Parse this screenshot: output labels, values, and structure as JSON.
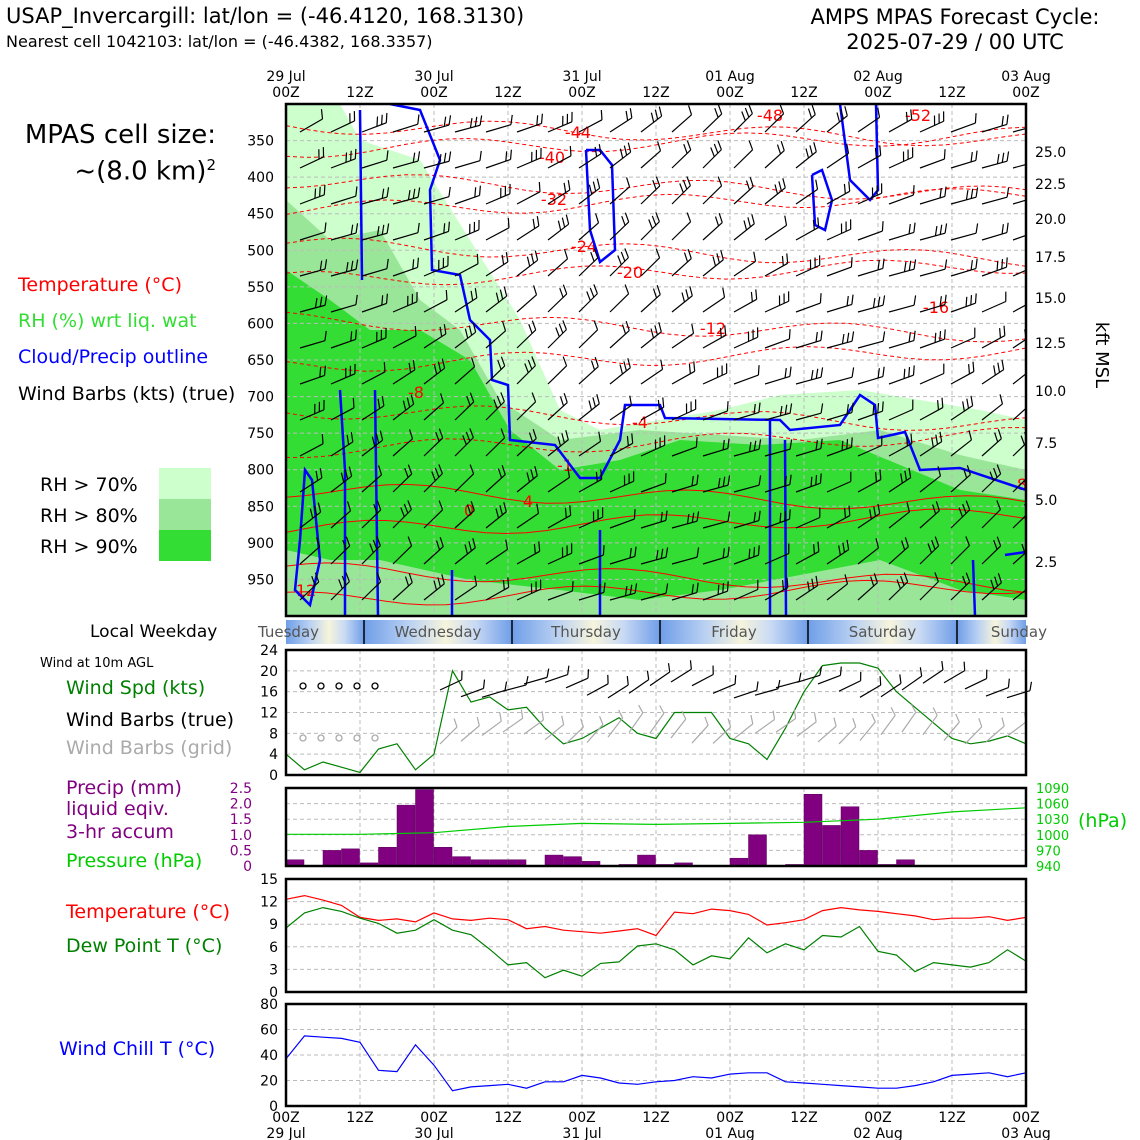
{
  "header": {
    "station": "USAP_Invercargill: lat/lon = (-46.4120, 168.3130)",
    "nearest": "Nearest cell 1042103: lat/lon = (-46.4382, 168.3357)",
    "cycle_title": "AMPS MPAS Forecast Cycle:",
    "cycle_date": "2025-07-29 / 00 UTC"
  },
  "cell_size": {
    "line1": "MPAS cell size:",
    "line2": "~(8.0 km)",
    "sup": "2"
  },
  "legend": {
    "temperature": "Temperature (°C)",
    "rh": "RH (%) wrt liq. wat",
    "cloud": "Cloud/Precip outline",
    "wind": "Wind Barbs (kts) (true)",
    "rh70": "RH > 70%",
    "rh80": "RH > 80%",
    "rh90": "RH > 90%"
  },
  "colors": {
    "rh70": "#ccffcc",
    "rh80": "#99e699",
    "rh90": "#33dd33",
    "temperature": "#ff0000",
    "cloud": "#0000ff",
    "wind_speed": "#008000",
    "precip": "#800080",
    "pressure": "#00cc00",
    "dewpoint": "#008000",
    "windchill": "#0000ff",
    "grid_barbs": "#aaaaaa"
  },
  "time_axis": {
    "top_dates": [
      "29 Jul",
      "30 Jul",
      "31 Jul",
      "01 Aug",
      "02 Aug",
      "03 Aug"
    ],
    "tick_labels": [
      "00Z",
      "12Z",
      "00Z",
      "12Z",
      "00Z",
      "12Z",
      "00Z",
      "12Z",
      "00Z",
      "12Z",
      "00Z"
    ],
    "bottom_dates": [
      "29 Jul",
      "30 Jul",
      "31 Jul",
      "01 Aug",
      "02 Aug",
      "03 Aug"
    ]
  },
  "weekdays": {
    "label": "Local Weekday",
    "days": [
      "Tuesday",
      "Wednesday",
      "Thursday",
      "Friday",
      "Saturday",
      "Sunday"
    ]
  },
  "chart_data": [
    {
      "type": "heatmap",
      "yticks_hpa": [
        350,
        400,
        450,
        500,
        550,
        600,
        650,
        700,
        750,
        800,
        850,
        900,
        950
      ],
      "ylim_hpa": [
        1000,
        300
      ],
      "right_axis_label": "kft MSL",
      "right_ticks_kft": [
        25.0,
        22.5,
        20.0,
        17.5,
        15.0,
        12.5,
        10.0,
        7.5,
        5.0,
        2.5
      ],
      "temperature_contour_labels": [
        "-48",
        "-52",
        "-44",
        "-40",
        "-32",
        "-24",
        "-20",
        "-16",
        "-12",
        "-8",
        "-4",
        "-1",
        "0",
        "4",
        "8",
        "12"
      ],
      "x_hours_range": [
        0,
        120
      ]
    },
    {
      "type": "line",
      "title_lines": [
        "Wind at 10m AGL"
      ],
      "series": [
        {
          "name": "Wind Spd (kts)",
          "x_hours": [
            0,
            3,
            6,
            9,
            12,
            15,
            18,
            21,
            24,
            27,
            30,
            33,
            36,
            39,
            42,
            45,
            48,
            51,
            54,
            57,
            60,
            63,
            66,
            69,
            72,
            75,
            78,
            81,
            84,
            87,
            90,
            93,
            96,
            99,
            102,
            105,
            108,
            111,
            114,
            117,
            120
          ],
          "values": [
            4,
            1,
            2.5,
            1.5,
            0.5,
            5,
            6,
            1,
            4,
            20,
            14,
            15,
            12.5,
            13,
            9,
            6,
            7,
            9,
            11,
            8,
            7,
            12,
            12,
            12,
            7,
            6,
            3,
            9,
            16,
            21,
            21.5,
            21.5,
            20.5,
            16,
            13,
            10,
            7,
            6,
            6.5,
            7.5,
            6
          ]
        }
      ],
      "extra_labels": [
        "Wind Barbs (true)",
        "Wind Barbs (grid)"
      ],
      "ylim": [
        0,
        24
      ],
      "yticks": [
        0,
        4,
        8,
        12,
        16,
        20,
        24
      ]
    },
    {
      "type": "bar",
      "series": [
        {
          "name": "Precip (mm) liquid eqiv. 3-hr accum",
          "x_hours": [
            0,
            3,
            6,
            9,
            12,
            15,
            18,
            21,
            24,
            27,
            30,
            33,
            36,
            39,
            42,
            45,
            48,
            51,
            54,
            57,
            60,
            63,
            66,
            69,
            72,
            75,
            78,
            81,
            84,
            87,
            90,
            93,
            96,
            99,
            102,
            105,
            108,
            111,
            114,
            117
          ],
          "values": [
            0.2,
            0.0,
            0.5,
            0.55,
            0.1,
            0.6,
            1.95,
            2.45,
            0.6,
            0.3,
            0.2,
            0.2,
            0.2,
            0.0,
            0.35,
            0.3,
            0.15,
            0.0,
            0.05,
            0.35,
            0.05,
            0.1,
            0.0,
            0.0,
            0.25,
            1.0,
            0.0,
            0.05,
            2.3,
            1.3,
            1.9,
            0.5,
            0.05,
            0.2,
            0.0,
            0.0,
            0.0,
            0.0,
            0.0,
            0.0
          ]
        },
        {
          "name": "Pressure (hPa)",
          "x_hours": [
            0,
            12,
            24,
            36,
            48,
            60,
            72,
            84,
            96,
            108,
            120
          ],
          "values": [
            1001,
            1001,
            1004,
            1016,
            1022,
            1020,
            1022,
            1024,
            1030,
            1044,
            1052
          ]
        }
      ],
      "ylim": [
        0,
        2.5
      ],
      "yticks": [
        0,
        0.5,
        1.0,
        1.5,
        2.0,
        2.5
      ],
      "y2lim": [
        940,
        1090
      ],
      "y2ticks": [
        940,
        970,
        1000,
        1030,
        1060,
        1090
      ],
      "y2label": "(hPa)"
    },
    {
      "type": "line",
      "series": [
        {
          "name": "Temperature (°C)",
          "x_hours": [
            0,
            3,
            6,
            9,
            12,
            15,
            18,
            21,
            24,
            27,
            30,
            33,
            36,
            39,
            42,
            45,
            48,
            51,
            54,
            57,
            60,
            63,
            66,
            69,
            72,
            75,
            78,
            81,
            84,
            87,
            90,
            93,
            96,
            99,
            102,
            105,
            108,
            111,
            114,
            117,
            120
          ],
          "values": [
            12.3,
            12.8,
            12.2,
            11.5,
            9.9,
            9.5,
            9.7,
            9.3,
            10.5,
            9.7,
            9.5,
            9.8,
            9.6,
            8.4,
            8.7,
            8.2,
            8.0,
            7.8,
            8.1,
            8.4,
            7.5,
            10.6,
            10.4,
            11.0,
            10.8,
            10.3,
            8.9,
            9.2,
            9.6,
            10.8,
            11.2,
            10.9,
            10.7,
            10.4,
            10.1,
            9.6,
            9.8,
            9.8,
            10.0,
            9.5,
            9.9
          ]
        },
        {
          "name": "Dew Point T (°C)",
          "x_hours": [
            0,
            3,
            6,
            9,
            12,
            15,
            18,
            21,
            24,
            27,
            30,
            33,
            36,
            39,
            42,
            45,
            48,
            51,
            54,
            57,
            60,
            63,
            66,
            69,
            72,
            75,
            78,
            81,
            84,
            87,
            90,
            93,
            96,
            99,
            102,
            105,
            108,
            111,
            114,
            117,
            120
          ],
          "values": [
            8.5,
            10.5,
            11.2,
            10.7,
            9.8,
            9.1,
            7.8,
            8.2,
            9.6,
            8.2,
            7.6,
            5.7,
            3.6,
            3.9,
            1.9,
            2.9,
            2.1,
            3.8,
            4.0,
            6.1,
            6.4,
            5.6,
            3.6,
            4.8,
            4.4,
            7.2,
            5.2,
            6.4,
            5.6,
            7.5,
            7.3,
            8.7,
            5.4,
            4.9,
            2.7,
            3.9,
            3.6,
            3.3,
            3.9,
            5.6,
            4.1
          ]
        }
      ],
      "ylim": [
        0,
        15
      ],
      "yticks": [
        0,
        3,
        6,
        9,
        12,
        15
      ]
    },
    {
      "type": "line",
      "series": [
        {
          "name": "Wind Chill T (°C)",
          "x_hours": [
            0,
            3,
            6,
            9,
            12,
            15,
            18,
            21,
            24,
            27,
            30,
            33,
            36,
            39,
            42,
            45,
            48,
            51,
            54,
            57,
            60,
            63,
            66,
            69,
            72,
            75,
            78,
            81,
            84,
            87,
            90,
            93,
            96,
            99,
            102,
            105,
            108,
            111,
            114,
            117,
            120
          ],
          "values": [
            37,
            55,
            54,
            53,
            50,
            28,
            27,
            48,
            32,
            12,
            15,
            16,
            17,
            14,
            19,
            19,
            24,
            22,
            18,
            17,
            19,
            20,
            23,
            22,
            25,
            26,
            26,
            19,
            18,
            17,
            16,
            15,
            14,
            14,
            16,
            19,
            24,
            25,
            26,
            23,
            26
          ]
        }
      ],
      "ylim": [
        0,
        80
      ],
      "yticks": [
        0,
        20,
        40,
        60,
        80
      ]
    }
  ],
  "panels": {
    "wind_title": "Wind at 10m AGL",
    "wind_spd": "Wind Spd (kts)",
    "wind_barbs_true": "Wind Barbs (true)",
    "wind_barbs_grid": "Wind Barbs (grid)",
    "precip_l1": "Precip (mm)",
    "precip_l2": "liquid eqiv.",
    "precip_l3": "3-hr accum",
    "pressure": "Pressure (hPa)",
    "hpa_unit": "(hPa)",
    "temperature": "Temperature (°C)",
    "dewpoint": "Dew Point T (°C)",
    "windchill": "Wind Chill T (°C)"
  }
}
